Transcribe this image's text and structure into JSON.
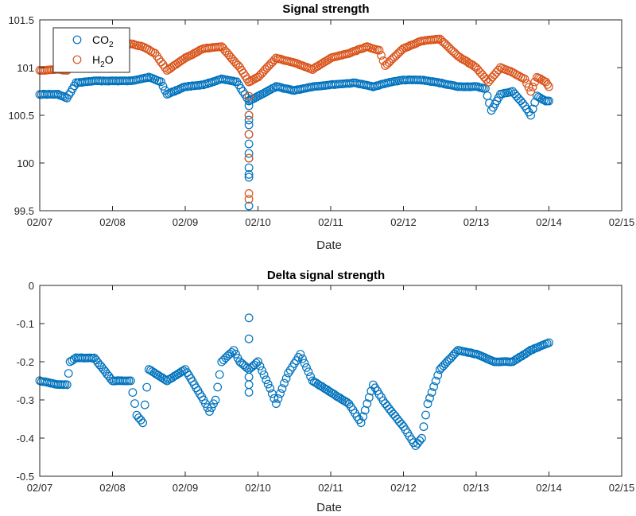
{
  "chart_data": [
    {
      "type": "scatter",
      "title": "Signal strength",
      "xlabel": "Date",
      "ylabel": "",
      "x_ticks": [
        "02/07",
        "02/08",
        "02/09",
        "02/10",
        "02/11",
        "02/12",
        "02/13",
        "02/14",
        "02/15"
      ],
      "xlim": [
        "02/07",
        "02/15"
      ],
      "ylim": [
        99.5,
        101.5
      ],
      "y_ticks": [
        99.5,
        100,
        100.5,
        101,
        101.5
      ],
      "y_tick_labels": [
        "99.5",
        "100",
        "100.5",
        "101",
        "101.5"
      ],
      "legend": {
        "placement": "top-left",
        "entries": [
          {
            "main": "CO",
            "sub": "2"
          },
          {
            "main": "H",
            "sub": "2",
            "after": "O"
          }
        ]
      },
      "series": [
        {
          "name": "CO2",
          "color": "#0072BD",
          "marker": "open-circle",
          "x": [
            "02/07 00:00",
            "02/07 06:00",
            "02/07 09:00",
            "02/07 12:00",
            "02/07 18:00",
            "02/08 00:00",
            "02/08 06:00",
            "02/08 12:00",
            "02/08 16:00",
            "02/08 18:00",
            "02/09 00:00",
            "02/09 06:00",
            "02/09 12:00",
            "02/09 17:00",
            "02/09 19:00",
            "02/09 21:00",
            "02/10 00:00",
            "02/10 06:00",
            "02/10 12:00",
            "02/10 18:00",
            "02/11 00:00",
            "02/11 08:00",
            "02/11 14:00",
            "02/11 20:00",
            "02/12 00:00",
            "02/12 06:00",
            "02/12 12:00",
            "02/12 18:00",
            "02/13 00:00",
            "02/13 03:00",
            "02/13 05:00",
            "02/13 08:00",
            "02/13 12:00",
            "02/13 16:00",
            "02/13 18:00",
            "02/13 20:00",
            "02/13 23:00",
            "02/14 00:00"
          ],
          "y": [
            100.72,
            100.72,
            100.68,
            100.84,
            100.86,
            100.86,
            100.86,
            100.9,
            100.85,
            100.72,
            100.8,
            100.82,
            100.88,
            100.85,
            100.75,
            100.65,
            100.7,
            100.8,
            100.76,
            100.8,
            100.82,
            100.84,
            100.8,
            100.85,
            100.87,
            100.87,
            100.84,
            100.8,
            100.8,
            100.78,
            100.55,
            100.72,
            100.75,
            100.6,
            100.5,
            100.7,
            100.65,
            100.65
          ],
          "dip": {
            "x": "02/09 21:00",
            "y": [
              100.65,
              100.6,
              100.5,
              100.45,
              100.4,
              100.3,
              100.2,
              100.1,
              100.05,
              99.95,
              99.88,
              99.85,
              99.55
            ]
          }
        },
        {
          "name": "H2O",
          "color": "#D95319",
          "marker": "open-circle",
          "x": [
            "02/07 00:00",
            "02/07 06:00",
            "02/07 09:00",
            "02/07 12:00",
            "02/07 18:00",
            "02/08 00:00",
            "02/08 06:00",
            "02/08 10:00",
            "02/08 14:00",
            "02/08 18:00",
            "02/09 00:00",
            "02/09 06:00",
            "02/09 12:00",
            "02/09 18:00",
            "02/09 21:00",
            "02/10 00:00",
            "02/10 06:00",
            "02/10 12:00",
            "02/10 18:00",
            "02/11 00:00",
            "02/11 06:00",
            "02/11 12:00",
            "02/11 16:00",
            "02/11 18:00",
            "02/12 00:00",
            "02/12 06:00",
            "02/12 12:00",
            "02/12 18:00",
            "02/13 00:00",
            "02/13 04:00",
            "02/13 08:00",
            "02/13 12:00",
            "02/13 16:00",
            "02/13 18:00",
            "02/13 20:00",
            "02/13 23:00",
            "02/14 00:00"
          ],
          "y": [
            100.97,
            100.98,
            100.97,
            101.05,
            101.12,
            101.2,
            101.25,
            101.22,
            101.15,
            100.97,
            101.1,
            101.2,
            101.22,
            101.0,
            100.85,
            100.9,
            101.1,
            101.05,
            100.98,
            101.1,
            101.15,
            101.22,
            101.18,
            101.02,
            101.2,
            101.28,
            101.3,
            101.12,
            101.0,
            100.85,
            101.0,
            100.95,
            100.88,
            100.75,
            100.9,
            100.85,
            100.8
          ],
          "dip": {
            "x": "02/09 21:00",
            "y": [
              100.85,
              100.7,
              100.5,
              100.3,
              100.05,
              99.68,
              99.62
            ]
          }
        }
      ]
    },
    {
      "type": "scatter",
      "title": "Delta signal strength",
      "xlabel": "Date",
      "ylabel": "",
      "x_ticks": [
        "02/07",
        "02/08",
        "02/09",
        "02/10",
        "02/11",
        "02/12",
        "02/13",
        "02/14",
        "02/15"
      ],
      "xlim": [
        "02/07",
        "02/15"
      ],
      "ylim": [
        -0.5,
        0
      ],
      "y_ticks": [
        -0.5,
        -0.4,
        -0.3,
        -0.2,
        -0.1,
        0
      ],
      "y_tick_labels": [
        "-0.5",
        "-0.4",
        "-0.3",
        "-0.2",
        "-0.1",
        "0"
      ],
      "series": [
        {
          "name": "",
          "color": "#0072BD",
          "marker": "open-circle",
          "x": [
            "02/07 00:00",
            "02/07 06:00",
            "02/07 09:00",
            "02/07 10:00",
            "02/07 12:00",
            "02/07 18:00",
            "02/08 00:00",
            "02/08 06:00",
            "02/08 08:00",
            "02/08 10:00",
            "02/08 12:00",
            "02/08 18:00",
            "02/09 00:00",
            "02/09 06:00",
            "02/09 08:00",
            "02/09 10:00",
            "02/09 12:00",
            "02/09 16:00",
            "02/09 18:00",
            "02/09 21:00",
            "02/10 00:00",
            "02/10 04:00",
            "02/10 06:00",
            "02/10 10:00",
            "02/10 14:00",
            "02/10 18:00",
            "02/11 00:00",
            "02/11 06:00",
            "02/11 10:00",
            "02/11 14:00",
            "02/11 18:00",
            "02/11 20:00",
            "02/12 00:00",
            "02/12 04:00",
            "02/12 06:00",
            "02/12 08:00",
            "02/12 12:00",
            "02/12 18:00",
            "02/13 00:00",
            "02/13 06:00",
            "02/13 12:00",
            "02/13 18:00",
            "02/14 00:00"
          ],
          "y": [
            -0.25,
            -0.26,
            -0.26,
            -0.2,
            -0.19,
            -0.19,
            -0.25,
            -0.25,
            -0.34,
            -0.36,
            -0.22,
            -0.25,
            -0.22,
            -0.3,
            -0.33,
            -0.3,
            -0.2,
            -0.17,
            -0.2,
            -0.22,
            -0.2,
            -0.27,
            -0.31,
            -0.23,
            -0.18,
            -0.25,
            -0.28,
            -0.31,
            -0.36,
            -0.26,
            -0.31,
            -0.33,
            -0.37,
            -0.42,
            -0.4,
            -0.31,
            -0.22,
            -0.17,
            -0.18,
            -0.2,
            -0.2,
            -0.17,
            -0.15
          ],
          "outliers": {
            "x": "02/09 21:00",
            "y": [
              -0.085,
              -0.14,
              -0.24,
              -0.26,
              -0.28
            ]
          }
        }
      ]
    }
  ]
}
